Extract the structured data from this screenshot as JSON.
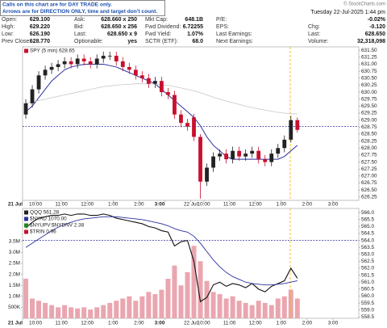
{
  "header": {
    "notice": [
      "Calls on this chart are for DAY TRADE only.",
      "Arrows are for DIRECTION ONLY, time and target don't count."
    ],
    "source": "© StockCharts.com",
    "datetime": "Tuesday 22-Jul-2025 1:44 pm",
    "quote": [
      [
        {
          "label": "Open:",
          "value": "629.100"
        },
        {
          "label": "High:",
          "value": "629.220"
        },
        {
          "label": "Low:",
          "value": "626.190"
        },
        {
          "label": "Prev Close:",
          "value": "628.770"
        }
      ],
      [
        {
          "label": "Ask:",
          "value": "628.660 x 250"
        },
        {
          "label": "Bid:",
          "value": "628.650 x 256"
        },
        {
          "label": "Last:",
          "value": "628.650 x 9"
        },
        {
          "label": "Optionable:",
          "value": "yes"
        }
      ],
      [
        {
          "label": "Mkt Cap:",
          "value": "648.1B"
        },
        {
          "label": "Fwd Dividend:",
          "value": "6.72255"
        },
        {
          "label": "Fwd Yield:",
          "value": "1.07%"
        },
        {
          "label": "SCTR (ETF):",
          "value": "68.0"
        }
      ],
      [
        {
          "label": "P/E:"
        },
        {
          "label": "EPS:"
        },
        {
          "label": "Last Earnings:"
        },
        {
          "label": "Next Earnings:"
        }
      ],
      [
        {
          "value": "-0.02%",
          "color": "#d40000"
        },
        {
          "label": "Chg:",
          "value": "-0.120",
          "color": "#d40000"
        },
        {
          "label": "Last:",
          "value": "628.650"
        },
        {
          "label": "Volume:",
          "value": "32,318,098"
        }
      ]
    ]
  },
  "chart_data": [
    {
      "type": "candlestick",
      "legend": [
        {
          "text": "SPY (5 min) 628.65",
          "color": "#c8102e"
        }
      ],
      "x": [
        0,
        0.25,
        0.5,
        0.75,
        1,
        1.25,
        1.5,
        1.75,
        2,
        2.25,
        2.5,
        2.75,
        3,
        3.25,
        3.5,
        3.75,
        4,
        4.25,
        4.5,
        4.75,
        5,
        5.25,
        5.5,
        5.75,
        6,
        6.25,
        6.5,
        6.75,
        7,
        7.25,
        7.5,
        7.75,
        8,
        8.25,
        8.5,
        8.75,
        9,
        9.25,
        9.5,
        9.75,
        10,
        10.25,
        10.5
      ],
      "open": [
        629.2,
        629.6,
        630.1,
        630.6,
        630.8,
        630.9,
        631.0,
        631.1,
        631.0,
        631.2,
        631.1,
        631.0,
        631.2,
        631.3,
        631.3,
        631.1,
        630.9,
        630.8,
        630.6,
        630.5,
        630.3,
        630.4,
        630.0,
        629.9,
        629.2,
        628.9,
        629.1,
        628.4,
        626.8,
        627.3,
        627.7,
        627.8,
        627.6,
        627.9,
        627.7,
        627.8,
        627.9,
        627.6,
        627.5,
        627.8,
        628.0,
        628.3,
        629.0
      ],
      "high": [
        629.75,
        630.25,
        630.75,
        630.95,
        631.05,
        631.15,
        631.25,
        631.25,
        631.35,
        631.35,
        631.25,
        631.35,
        631.45,
        631.45,
        631.45,
        631.25,
        631.05,
        630.95,
        630.75,
        630.65,
        630.55,
        630.55,
        630.15,
        630.05,
        629.35,
        629.05,
        629.22,
        628.5,
        627.45,
        627.85,
        627.95,
        627.95,
        628.05,
        628.05,
        627.95,
        628.05,
        628.05,
        627.75,
        627.95,
        628.15,
        628.45,
        629.15,
        629.1
      ],
      "low": [
        629.05,
        629.45,
        629.95,
        630.45,
        630.65,
        630.75,
        630.85,
        630.85,
        630.85,
        630.95,
        630.85,
        630.85,
        631.05,
        631.15,
        630.95,
        630.75,
        630.65,
        630.45,
        630.35,
        630.15,
        630.15,
        629.85,
        629.75,
        629.05,
        628.75,
        628.62,
        628.25,
        626.19,
        626.65,
        627.15,
        627.55,
        627.45,
        627.45,
        627.55,
        627.55,
        627.65,
        627.45,
        627.35,
        627.35,
        627.65,
        627.85,
        628.2,
        628.55
      ],
      "close": [
        629.6,
        630.1,
        630.6,
        630.8,
        630.9,
        631.0,
        631.1,
        631.0,
        631.2,
        631.1,
        631.0,
        631.2,
        631.3,
        631.3,
        631.1,
        630.9,
        630.8,
        630.6,
        630.5,
        630.3,
        630.4,
        630.0,
        629.9,
        629.2,
        628.9,
        628.77,
        628.4,
        626.8,
        627.3,
        627.7,
        627.8,
        627.6,
        627.9,
        627.7,
        627.8,
        627.9,
        627.6,
        627.5,
        627.8,
        628.0,
        628.3,
        629.0,
        628.65
      ],
      "up_color": "#222222",
      "down_color": "#c8102e",
      "lines": [
        {
          "color": "#2b2f9e",
          "values": [
            629.3,
            629.5,
            629.8,
            630.1,
            630.4,
            630.6,
            630.8,
            630.9,
            630.95,
            631.0,
            631.0,
            631.0,
            631.0,
            630.95,
            630.9,
            630.8,
            630.7,
            630.6,
            630.5,
            630.4,
            630.3,
            630.1,
            629.9,
            629.7,
            629.5,
            629.3,
            629.1,
            628.8,
            628.4,
            628.1,
            627.9,
            627.7,
            627.6,
            627.6,
            627.6,
            627.6,
            627.6,
            627.6,
            627.6,
            627.6,
            627.7,
            627.9,
            628.1
          ]
        },
        {
          "color": "#c8c8c8",
          "values": [
            629.6,
            629.65,
            629.7,
            629.75,
            629.8,
            629.85,
            629.9,
            629.95,
            630.0,
            630.05,
            630.1,
            630.15,
            630.2,
            630.22,
            630.25,
            630.27,
            630.28,
            630.3,
            630.3,
            630.3,
            630.28,
            630.26,
            630.24,
            630.2,
            630.15,
            630.1,
            630.05,
            629.98,
            629.9,
            629.82,
            629.75,
            629.68,
            629.62,
            629.56,
            629.5,
            629.45,
            629.4,
            629.36,
            629.32,
            629.28,
            629.25,
            629.23,
            629.22
          ]
        }
      ],
      "reference_line": 628.77,
      "reference_color": "#2b2f9e",
      "marker_x": 10.35,
      "marker_color": "#f0b400",
      "xlim": [
        0,
        13
      ],
      "xticks": [
        {
          "value": 0,
          "label": "21 Jul"
        },
        {
          "value": 0.5,
          "label": "10:00"
        },
        {
          "value": 1.5,
          "label": "11:00"
        },
        {
          "value": 2.5,
          "label": "12:00"
        },
        {
          "value": 3.5,
          "label": "1:00"
        },
        {
          "value": 4.5,
          "label": "2:00"
        },
        {
          "value": 5.5,
          "label": "3:00"
        },
        {
          "value": 6.5,
          "label": "22 Jul"
        },
        {
          "value": 7,
          "label": "10:00"
        },
        {
          "value": 8,
          "label": "11:00"
        },
        {
          "value": 9,
          "label": "12:00"
        },
        {
          "value": 10,
          "label": "1:00"
        },
        {
          "value": 11,
          "label": "2:00"
        },
        {
          "value": 12,
          "label": "3:00"
        }
      ],
      "ylim": [
        626.13,
        631.62
      ],
      "yticks": [
        626.25,
        {
          "value": 626.5,
          "label": "626.50"
        },
        626.75,
        {
          "value": 627,
          "label": "627.00"
        },
        627.25,
        {
          "value": 627.5,
          "label": "627.50"
        },
        627.75,
        {
          "value": 628,
          "label": "628.00"
        },
        628.25,
        {
          "value": 628.5,
          "label": "628.50"
        },
        628.75,
        {
          "value": 629,
          "label": "629.00"
        },
        629.25,
        {
          "value": 629.5,
          "label": "629.50"
        },
        629.75,
        {
          "value": 630,
          "label": "630.00"
        },
        630.25,
        {
          "value": 630.5,
          "label": "630.50"
        },
        630.75,
        {
          "value": 631,
          "label": "631.00"
        },
        631.25,
        {
          "value": 631.5,
          "label": "631.50"
        }
      ]
    },
    {
      "type": "line",
      "legend": [
        {
          "text": "QQQ 561.28",
          "color": "#222222"
        },
        {
          "text": "$NYAD 1070.00",
          "color": "#2b2f9e"
        },
        {
          "text": "$NYUPV:$NYDNV 2.38",
          "color": "#1a8a1a"
        },
        {
          "text": "$TRIN 0.96",
          "color": "#c8102e"
        }
      ],
      "x": [
        0,
        0.25,
        0.5,
        0.75,
        1,
        1.25,
        1.5,
        1.75,
        2,
        2.25,
        2.5,
        2.75,
        3,
        3.25,
        3.5,
        3.75,
        4,
        4.25,
        4.5,
        4.75,
        5,
        5.25,
        5.5,
        5.75,
        6,
        6.25,
        6.5,
        6.75,
        7,
        7.25,
        7.5,
        7.75,
        8,
        8.25,
        8.5,
        8.75,
        9,
        9.25,
        9.5,
        9.75,
        10,
        10.25,
        10.5
      ],
      "series": [
        {
          "color": "#111111",
          "values": [
            564.9,
            565.3,
            565.6,
            565.7,
            565.8,
            565.8,
            565.9,
            565.8,
            565.9,
            565.9,
            565.8,
            565.8,
            565.9,
            565.8,
            565.6,
            565.5,
            565.4,
            565.3,
            565.2,
            565.0,
            564.9,
            564.7,
            564.6,
            563.6,
            563.9,
            564.0,
            562.5,
            559.6,
            559.9,
            560.8,
            561.0,
            560.7,
            560.9,
            560.8,
            560.6,
            560.9,
            560.5,
            560.3,
            560.7,
            560.9,
            561.1,
            562.0,
            561.28
          ]
        },
        {
          "color": "#2b2f9e",
          "values": [
            563.5,
            563.8,
            564.1,
            564.4,
            564.7,
            564.95,
            565.15,
            565.3,
            565.45,
            565.55,
            565.6,
            565.65,
            565.7,
            565.7,
            565.7,
            565.65,
            565.6,
            565.55,
            565.5,
            565.4,
            565.3,
            565.2,
            565.05,
            564.85,
            564.7,
            564.6,
            564.3,
            563.8,
            563.2,
            562.6,
            562.1,
            561.7,
            561.4,
            561.2,
            561.0,
            560.9,
            560.85,
            560.8,
            560.8,
            560.85,
            560.9,
            561.0,
            561.1
          ]
        }
      ],
      "volume": {
        "color": "#eaa6b0",
        "values": [
          1800000,
          900000,
          800000,
          700000,
          600000,
          500000,
          600000,
          500000,
          450000,
          500000,
          400000,
          500000,
          600000,
          700000,
          800000,
          900000,
          1000000,
          800000,
          1000000,
          1200000,
          1100000,
          1300000,
          1800000,
          2400000,
          1500000,
          2100000,
          3300000,
          2600000,
          1700000,
          1200000,
          1100000,
          900000,
          1000000,
          800000,
          700000,
          600000,
          800000,
          700000,
          600000,
          900000,
          1000000,
          1300000,
          900000
        ],
        "ylim": [
          0,
          5000000
        ],
        "yticks": [
          {
            "value": 500000,
            "label": "500K"
          },
          {
            "value": 1000000,
            "label": "1.0M"
          },
          {
            "value": 1500000,
            "label": "1.5M"
          },
          {
            "value": 2000000,
            "label": "2.0M"
          },
          {
            "value": 2500000,
            "label": "2.5M"
          },
          {
            "value": 3000000,
            "label": "3.0M"
          },
          {
            "value": 3500000,
            "label": "3.5M"
          }
        ]
      },
      "reference_line": 564.0,
      "reference_color": "#2b2f9e",
      "marker_x": 10.35,
      "marker_color": "#f0b400",
      "xlim": [
        0,
        13
      ],
      "xticks": [
        {
          "value": 0,
          "label": "21 Jul"
        },
        {
          "value": 0.5,
          "label": "10:00"
        },
        {
          "value": 1.5,
          "label": "11:00"
        },
        {
          "value": 2.5,
          "label": "12:00"
        },
        {
          "value": 3.5,
          "label": "1:00"
        },
        {
          "value": 4.5,
          "label": "2:00"
        },
        {
          "value": 5.5,
          "label": "3:00"
        },
        {
          "value": 6.5,
          "label": "22 Jul"
        },
        {
          "value": 7,
          "label": "10:00"
        },
        {
          "value": 8,
          "label": "11:00"
        },
        {
          "value": 9,
          "label": "12:00"
        },
        {
          "value": 10,
          "label": "1:00"
        },
        {
          "value": 11,
          "label": "2:00"
        },
        {
          "value": 12,
          "label": "3:00"
        }
      ],
      "ylim": [
        558.4,
        566.3
      ],
      "yticks": [
        558.5,
        {
          "value": 559,
          "label": "559.0"
        },
        559.5,
        {
          "value": 560,
          "label": "560.0"
        },
        560.5,
        {
          "value": 561,
          "label": "561.0"
        },
        561.5,
        {
          "value": 562,
          "label": "562.0"
        },
        562.5,
        {
          "value": 563,
          "label": "563.0"
        },
        563.5,
        {
          "value": 564,
          "label": "564.0"
        },
        564.5,
        {
          "value": 565,
          "label": "565.0"
        },
        565.5,
        {
          "value": 566,
          "label": "566.0"
        }
      ]
    }
  ]
}
